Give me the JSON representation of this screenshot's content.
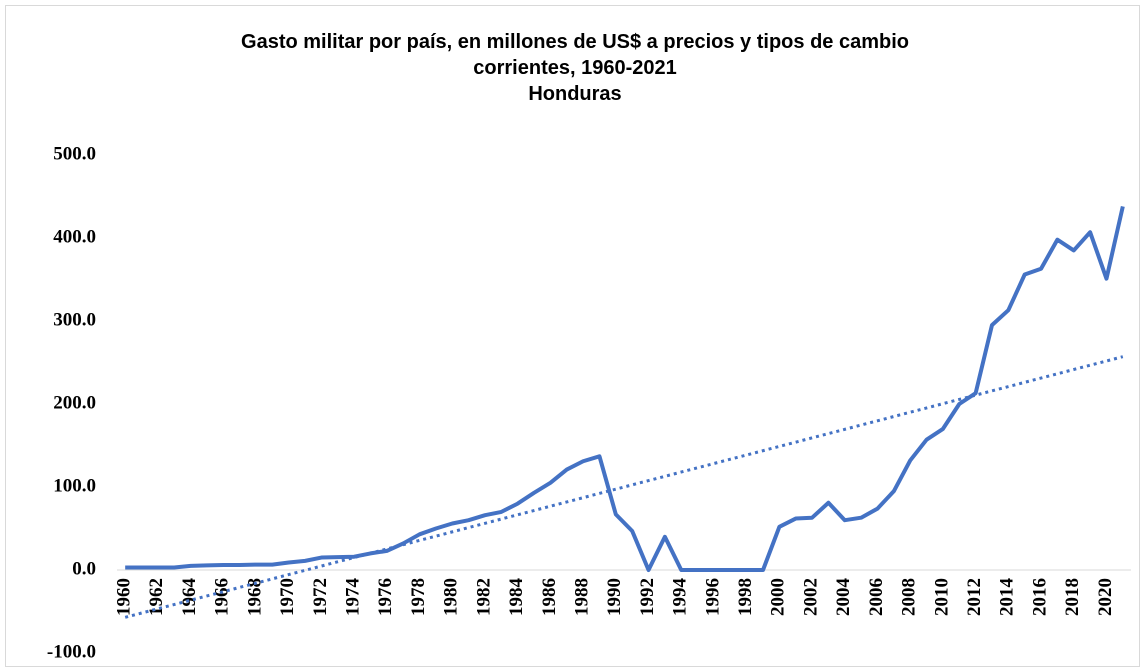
{
  "chart_data": {
    "type": "line",
    "title": [
      "Gasto militar por país, en millones de US$ a precios y tipos de cambio",
      "corrientes, 1960-2021",
      "Honduras"
    ],
    "categories": [
      "1960",
      null,
      "1962",
      null,
      "1964",
      null,
      "1966",
      null,
      "1968",
      null,
      "1970",
      null,
      "1972",
      null,
      "1974",
      null,
      "1976",
      null,
      "1978",
      null,
      "1980",
      null,
      "1982",
      null,
      "1984",
      null,
      "1986",
      null,
      "1988",
      null,
      "1990",
      null,
      "1992",
      null,
      "1994",
      null,
      "1996",
      null,
      "1998",
      null,
      "2000",
      null,
      "2002",
      null,
      "2004",
      null,
      "2006",
      null,
      "2008",
      null,
      "2010",
      null,
      "2012",
      null,
      "2014",
      null,
      "2016",
      null,
      "2018",
      null,
      "2020",
      null
    ],
    "series": [
      {
        "color": "#4472c4",
        "values": [
          3,
          3,
          3,
          3,
          5,
          5.5,
          6,
          6,
          6.5,
          6.5,
          9,
          11,
          15,
          15.5,
          16,
          20,
          23,
          32,
          43,
          50,
          56,
          60,
          66,
          70,
          80,
          93,
          105,
          121,
          131,
          137,
          67,
          47,
          0,
          40,
          0,
          0,
          0,
          0,
          0,
          0,
          52,
          62,
          63,
          81,
          60,
          63,
          74,
          95,
          132,
          157,
          170,
          200,
          213,
          295,
          313,
          356,
          363,
          398,
          385,
          407,
          351,
          438
        ]
      }
    ],
    "trendline": {
      "values": [
        -57,
        257
      ],
      "color": "#4472c4",
      "dotted": true
    },
    "ylim": [
      -100,
      500
    ],
    "yticks": [
      {
        "value": -100,
        "label": "-100.0"
      },
      {
        "value": 0,
        "label": "0.0"
      },
      {
        "value": 100,
        "label": "100.0"
      },
      {
        "value": 200,
        "label": "200.0"
      },
      {
        "value": 300,
        "label": "300.0"
      },
      {
        "value": 400,
        "label": "400.0"
      },
      {
        "value": 500,
        "label": "500.0"
      }
    ],
    "grid": false
  }
}
